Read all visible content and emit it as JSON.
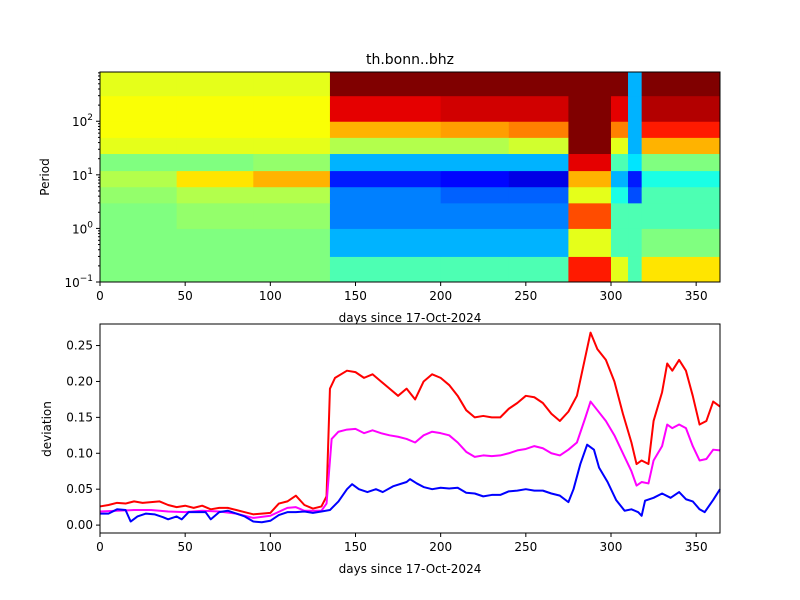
{
  "chart_data": [
    {
      "type": "heatmap",
      "title": "th.bonn..bhz",
      "xlabel": "days since 17-Oct-2024",
      "ylabel": "Period",
      "xlim": [
        0,
        364
      ],
      "ylim": [
        0.1,
        830
      ],
      "yscale": "log",
      "xticks": [
        0,
        50,
        100,
        150,
        200,
        250,
        300,
        350
      ],
      "yticks": [
        {
          "base": "10",
          "exp": "−1",
          "value": 0.1
        },
        {
          "base": "10",
          "exp": "0",
          "value": 1
        },
        {
          "base": "10",
          "exp": "1",
          "value": 10
        },
        {
          "base": "10",
          "exp": "2",
          "value": 100
        }
      ],
      "colormap": "jet",
      "x_edges": [
        0,
        45,
        90,
        135,
        200,
        240,
        275,
        300,
        310,
        318,
        364
      ],
      "period_edges": [
        0.1,
        0.3,
        1,
        3,
        6,
        12,
        25,
        50,
        100,
        300,
        830
      ],
      "levels": [
        [
          0.5,
          0.5,
          0.5,
          0.45,
          0.45,
          0.45,
          0.85,
          0.6,
          0.45,
          0.65
        ],
        [
          0.5,
          0.5,
          0.5,
          0.3,
          0.3,
          0.3,
          0.6,
          0.45,
          0.45,
          0.5
        ],
        [
          0.5,
          0.52,
          0.52,
          0.25,
          0.25,
          0.25,
          0.8,
          0.45,
          0.45,
          0.45
        ],
        [
          0.52,
          0.55,
          0.55,
          0.25,
          0.22,
          0.22,
          0.6,
          0.4,
          0.2,
          0.45
        ],
        [
          0.55,
          0.65,
          0.7,
          0.15,
          0.13,
          0.1,
          0.7,
          0.3,
          0.15,
          0.4
        ],
        [
          0.5,
          0.5,
          0.52,
          0.3,
          0.3,
          0.3,
          0.9,
          0.45,
          0.35,
          0.5
        ],
        [
          0.6,
          0.6,
          0.6,
          0.55,
          0.55,
          0.58,
          1.0,
          0.6,
          0.3,
          0.7
        ],
        [
          0.62,
          0.62,
          0.62,
          0.7,
          0.72,
          0.75,
          1.0,
          0.75,
          0.3,
          0.85
        ],
        [
          0.62,
          0.62,
          0.62,
          0.9,
          0.92,
          0.92,
          1.0,
          0.9,
          0.3,
          0.95
        ],
        [
          0.6,
          0.6,
          0.6,
          1.0,
          1.0,
          1.0,
          1.0,
          1.0,
          0.3,
          1.0
        ]
      ]
    },
    {
      "type": "line",
      "xlabel": "days since 17-Oct-2024",
      "ylabel": "deviation",
      "xlim": [
        0,
        364
      ],
      "ylim": [
        -0.011,
        0.28
      ],
      "xticks": [
        0,
        50,
        100,
        150,
        200,
        250,
        300,
        350
      ],
      "yticks": [
        "0.00",
        "0.05",
        "0.10",
        "0.15",
        "0.20",
        "0.25"
      ],
      "series": [
        {
          "color": "#ff0000",
          "points": [
            [
              0,
              0.026
            ],
            [
              5,
              0.028
            ],
            [
              10,
              0.031
            ],
            [
              15,
              0.03
            ],
            [
              20,
              0.033
            ],
            [
              25,
              0.031
            ],
            [
              30,
              0.032
            ],
            [
              35,
              0.033
            ],
            [
              40,
              0.028
            ],
            [
              45,
              0.025
            ],
            [
              50,
              0.027
            ],
            [
              55,
              0.024
            ],
            [
              60,
              0.027
            ],
            [
              65,
              0.022
            ],
            [
              70,
              0.024
            ],
            [
              75,
              0.024
            ],
            [
              80,
              0.021
            ],
            [
              85,
              0.018
            ],
            [
              90,
              0.015
            ],
            [
              95,
              0.016
            ],
            [
              100,
              0.017
            ],
            [
              105,
              0.03
            ],
            [
              110,
              0.033
            ],
            [
              115,
              0.041
            ],
            [
              120,
              0.028
            ],
            [
              125,
              0.023
            ],
            [
              130,
              0.026
            ],
            [
              133,
              0.04
            ],
            [
              135,
              0.19
            ],
            [
              138,
              0.205
            ],
            [
              145,
              0.215
            ],
            [
              150,
              0.213
            ],
            [
              155,
              0.205
            ],
            [
              160,
              0.21
            ],
            [
              165,
              0.2
            ],
            [
              170,
              0.19
            ],
            [
              175,
              0.18
            ],
            [
              180,
              0.19
            ],
            [
              185,
              0.175
            ],
            [
              190,
              0.2
            ],
            [
              195,
              0.21
            ],
            [
              200,
              0.205
            ],
            [
              205,
              0.195
            ],
            [
              210,
              0.18
            ],
            [
              215,
              0.16
            ],
            [
              220,
              0.15
            ],
            [
              225,
              0.152
            ],
            [
              230,
              0.15
            ],
            [
              235,
              0.15
            ],
            [
              240,
              0.162
            ],
            [
              245,
              0.17
            ],
            [
              250,
              0.18
            ],
            [
              255,
              0.178
            ],
            [
              260,
              0.17
            ],
            [
              265,
              0.155
            ],
            [
              270,
              0.145
            ],
            [
              275,
              0.158
            ],
            [
              280,
              0.18
            ],
            [
              285,
              0.235
            ],
            [
              288,
              0.268
            ],
            [
              292,
              0.245
            ],
            [
              297,
              0.23
            ],
            [
              302,
              0.2
            ],
            [
              307,
              0.155
            ],
            [
              312,
              0.115
            ],
            [
              315,
              0.085
            ],
            [
              318,
              0.09
            ],
            [
              322,
              0.085
            ],
            [
              325,
              0.145
            ],
            [
              330,
              0.185
            ],
            [
              333,
              0.225
            ],
            [
              336,
              0.215
            ],
            [
              340,
              0.23
            ],
            [
              344,
              0.215
            ],
            [
              348,
              0.18
            ],
            [
              352,
              0.14
            ],
            [
              356,
              0.145
            ],
            [
              360,
              0.172
            ],
            [
              364,
              0.165
            ]
          ]
        },
        {
          "color": "#ff00ff",
          "points": [
            [
              0,
              0.019
            ],
            [
              10,
              0.02
            ],
            [
              20,
              0.021
            ],
            [
              30,
              0.021
            ],
            [
              40,
              0.019
            ],
            [
              50,
              0.018
            ],
            [
              60,
              0.02
            ],
            [
              70,
              0.019
            ],
            [
              80,
              0.016
            ],
            [
              90,
              0.01
            ],
            [
              100,
              0.013
            ],
            [
              110,
              0.024
            ],
            [
              115,
              0.025
            ],
            [
              120,
              0.02
            ],
            [
              130,
              0.02
            ],
            [
              133,
              0.03
            ],
            [
              136,
              0.12
            ],
            [
              140,
              0.13
            ],
            [
              145,
              0.133
            ],
            [
              150,
              0.134
            ],
            [
              155,
              0.128
            ],
            [
              160,
              0.132
            ],
            [
              165,
              0.128
            ],
            [
              170,
              0.125
            ],
            [
              175,
              0.123
            ],
            [
              180,
              0.12
            ],
            [
              185,
              0.115
            ],
            [
              190,
              0.125
            ],
            [
              195,
              0.13
            ],
            [
              200,
              0.128
            ],
            [
              205,
              0.125
            ],
            [
              210,
              0.115
            ],
            [
              215,
              0.102
            ],
            [
              220,
              0.095
            ],
            [
              225,
              0.097
            ],
            [
              230,
              0.096
            ],
            [
              235,
              0.097
            ],
            [
              240,
              0.1
            ],
            [
              245,
              0.104
            ],
            [
              250,
              0.106
            ],
            [
              255,
              0.11
            ],
            [
              260,
              0.107
            ],
            [
              265,
              0.1
            ],
            [
              270,
              0.097
            ],
            [
              275,
              0.105
            ],
            [
              280,
              0.115
            ],
            [
              285,
              0.15
            ],
            [
              288,
              0.172
            ],
            [
              292,
              0.16
            ],
            [
              297,
              0.145
            ],
            [
              302,
              0.125
            ],
            [
              307,
              0.1
            ],
            [
              312,
              0.075
            ],
            [
              315,
              0.055
            ],
            [
              318,
              0.06
            ],
            [
              322,
              0.058
            ],
            [
              325,
              0.09
            ],
            [
              330,
              0.11
            ],
            [
              333,
              0.14
            ],
            [
              336,
              0.135
            ],
            [
              340,
              0.14
            ],
            [
              344,
              0.135
            ],
            [
              348,
              0.11
            ],
            [
              352,
              0.09
            ],
            [
              356,
              0.092
            ],
            [
              360,
              0.105
            ],
            [
              364,
              0.104
            ]
          ]
        },
        {
          "color": "#0000ff",
          "points": [
            [
              0,
              0.016
            ],
            [
              5,
              0.016
            ],
            [
              10,
              0.022
            ],
            [
              15,
              0.021
            ],
            [
              18,
              0.005
            ],
            [
              22,
              0.012
            ],
            [
              27,
              0.016
            ],
            [
              32,
              0.015
            ],
            [
              37,
              0.011
            ],
            [
              40,
              0.008
            ],
            [
              45,
              0.012
            ],
            [
              48,
              0.008
            ],
            [
              52,
              0.018
            ],
            [
              58,
              0.018
            ],
            [
              62,
              0.018
            ],
            [
              65,
              0.008
            ],
            [
              70,
              0.018
            ],
            [
              75,
              0.02
            ],
            [
              80,
              0.016
            ],
            [
              85,
              0.012
            ],
            [
              90,
              0.005
            ],
            [
              95,
              0.004
            ],
            [
              100,
              0.006
            ],
            [
              105,
              0.014
            ],
            [
              110,
              0.018
            ],
            [
              115,
              0.018
            ],
            [
              120,
              0.019
            ],
            [
              125,
              0.017
            ],
            [
              130,
              0.019
            ],
            [
              135,
              0.021
            ],
            [
              140,
              0.033
            ],
            [
              145,
              0.05
            ],
            [
              148,
              0.057
            ],
            [
              152,
              0.05
            ],
            [
              157,
              0.046
            ],
            [
              162,
              0.05
            ],
            [
              166,
              0.046
            ],
            [
              172,
              0.054
            ],
            [
              180,
              0.06
            ],
            [
              182,
              0.064
            ],
            [
              186,
              0.058
            ],
            [
              190,
              0.053
            ],
            [
              195,
              0.05
            ],
            [
              200,
              0.052
            ],
            [
              205,
              0.051
            ],
            [
              210,
              0.052
            ],
            [
              215,
              0.045
            ],
            [
              220,
              0.044
            ],
            [
              225,
              0.04
            ],
            [
              230,
              0.042
            ],
            [
              235,
              0.042
            ],
            [
              240,
              0.047
            ],
            [
              245,
              0.048
            ],
            [
              250,
              0.05
            ],
            [
              255,
              0.048
            ],
            [
              260,
              0.048
            ],
            [
              265,
              0.044
            ],
            [
              270,
              0.041
            ],
            [
              275,
              0.032
            ],
            [
              278,
              0.05
            ],
            [
              282,
              0.085
            ],
            [
              286,
              0.112
            ],
            [
              290,
              0.105
            ],
            [
              293,
              0.08
            ],
            [
              298,
              0.06
            ],
            [
              303,
              0.035
            ],
            [
              308,
              0.02
            ],
            [
              312,
              0.022
            ],
            [
              316,
              0.018
            ],
            [
              318,
              0.013
            ],
            [
              320,
              0.034
            ],
            [
              325,
              0.038
            ],
            [
              330,
              0.044
            ],
            [
              335,
              0.038
            ],
            [
              340,
              0.046
            ],
            [
              344,
              0.036
            ],
            [
              348,
              0.033
            ],
            [
              352,
              0.022
            ],
            [
              355,
              0.018
            ],
            [
              360,
              0.035
            ],
            [
              364,
              0.05
            ]
          ]
        }
      ]
    }
  ]
}
